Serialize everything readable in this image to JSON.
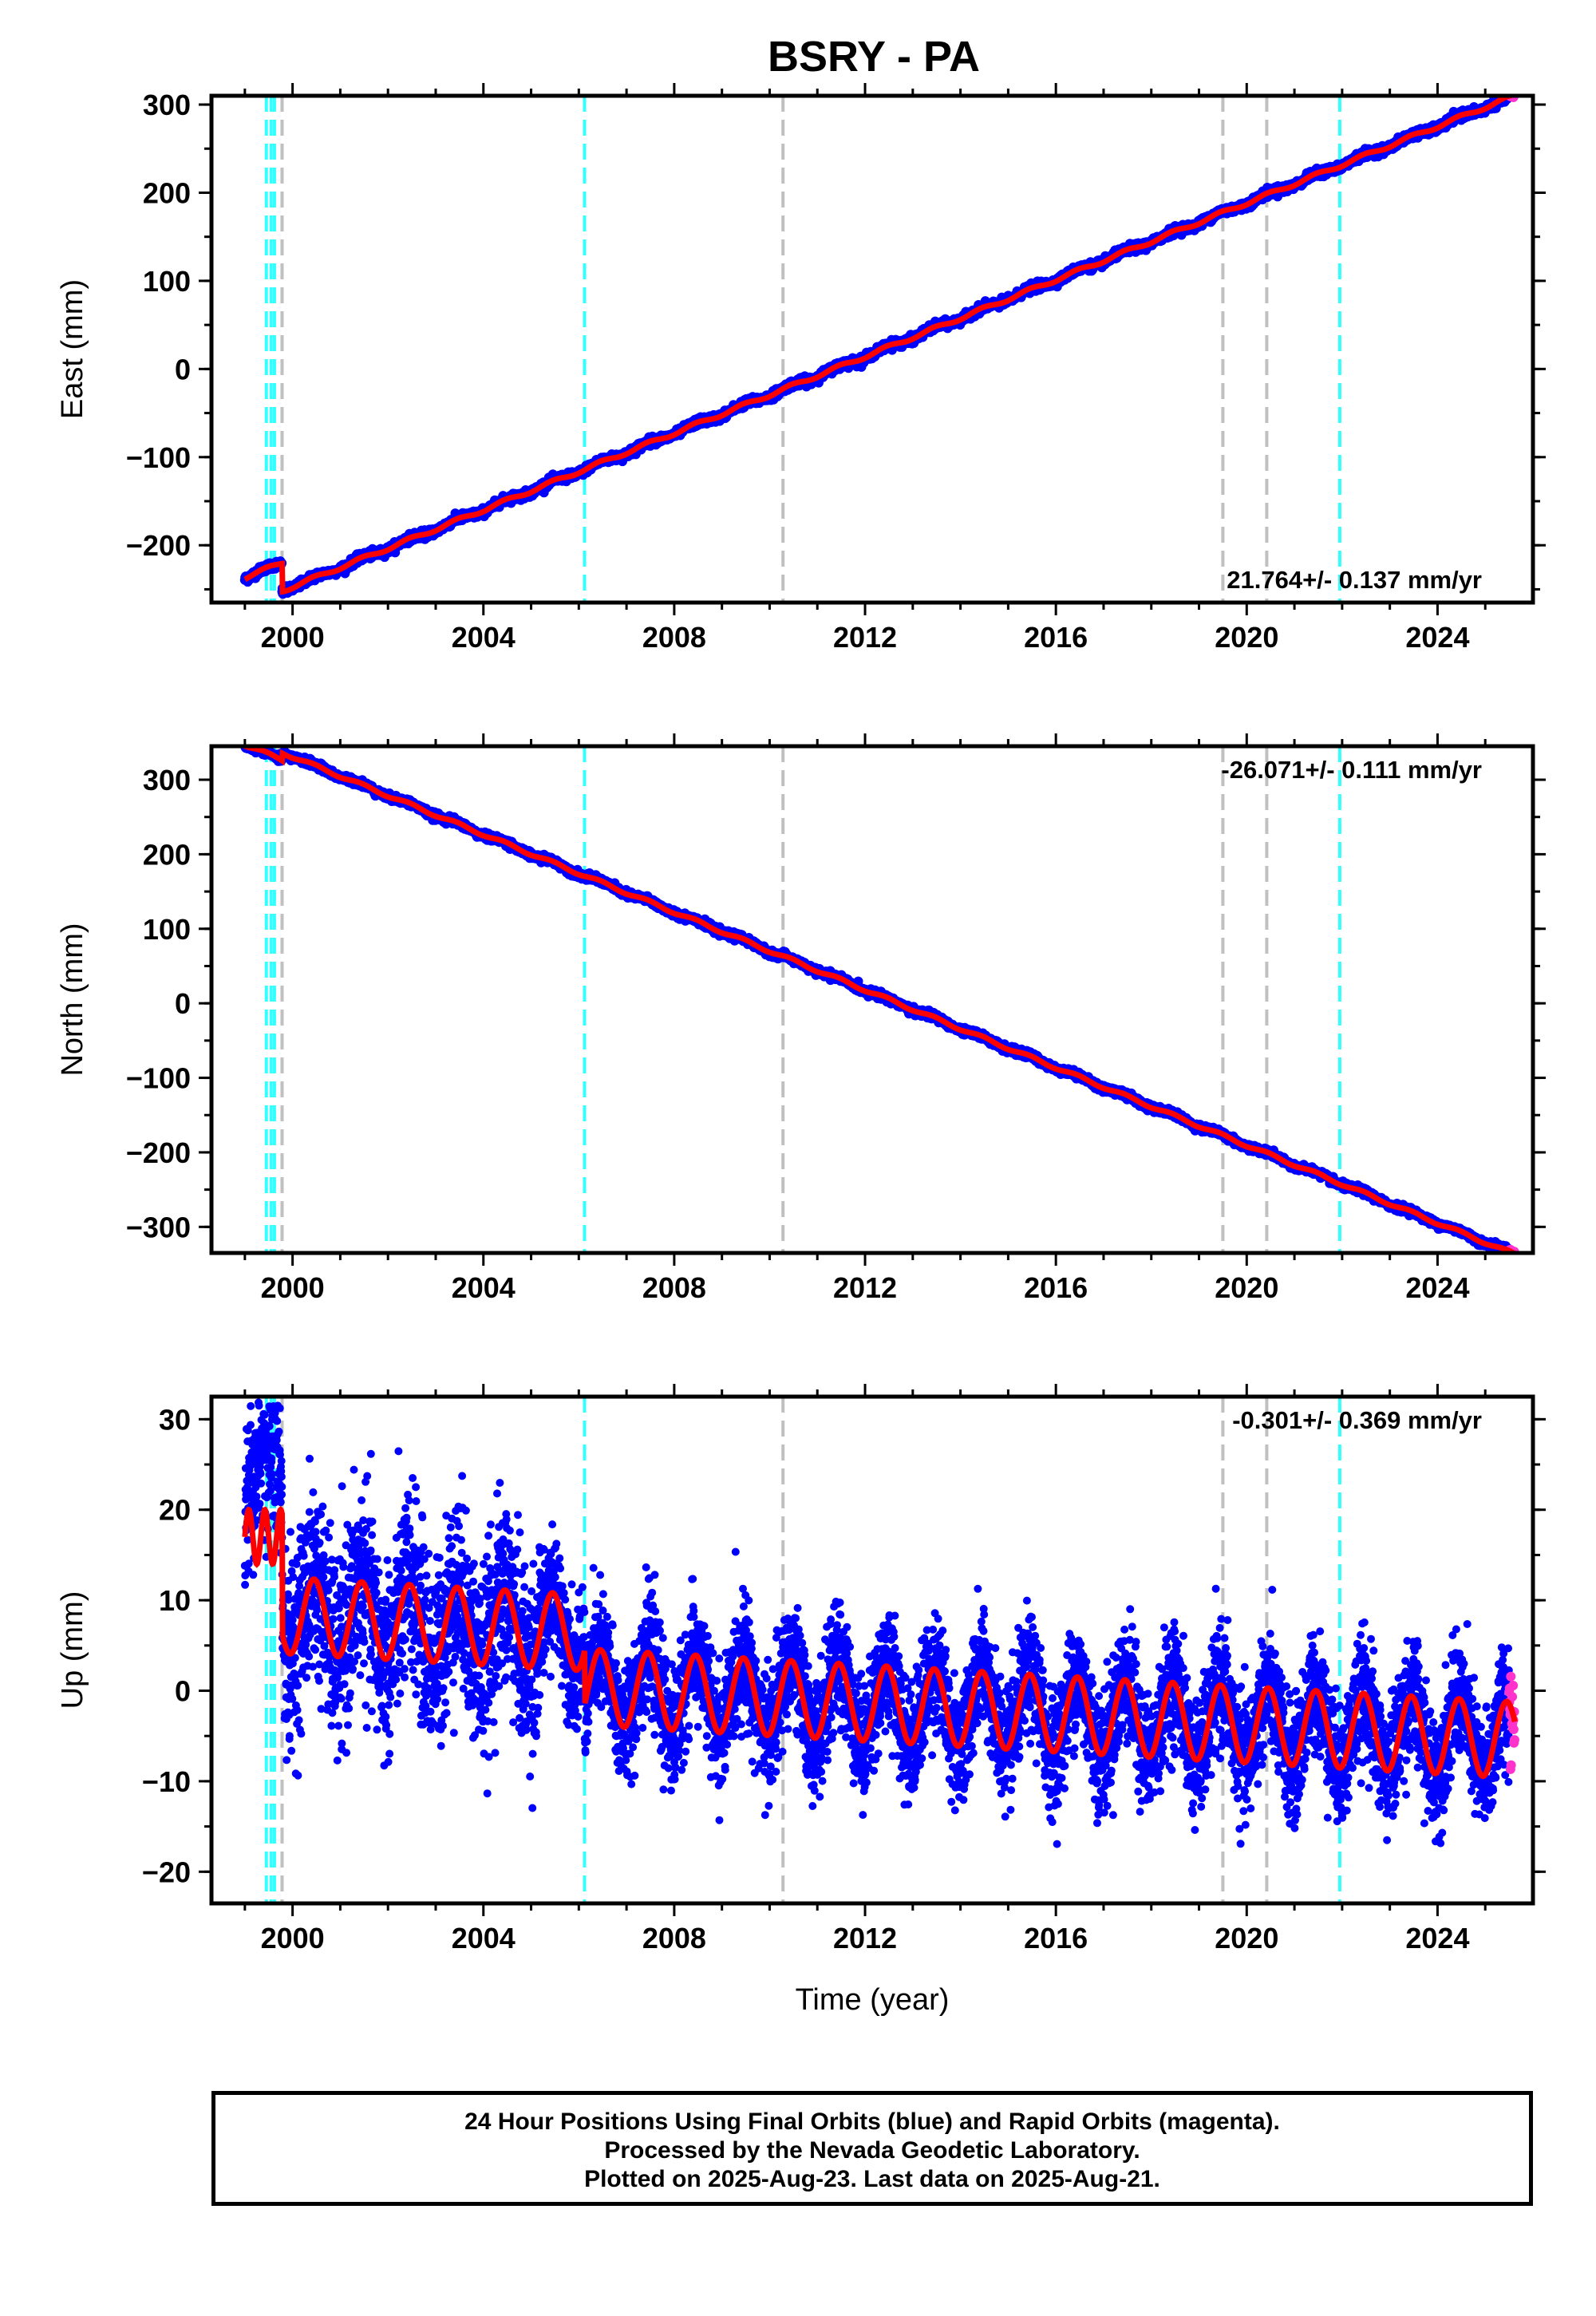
{
  "title": "BSRY - PA",
  "footer": {
    "line1": "24 Hour Positions Using Final Orbits (blue) and Rapid Orbits (magenta).",
    "line2": "Processed by the Nevada Geodetic Laboratory.",
    "line3": "Plotted on 2025-Aug-23. Last data on 2025-Aug-21."
  },
  "colors": {
    "final_orbits": "#0000ff",
    "rapid_orbits": "#ff33cc",
    "model_fit": "#ff0000",
    "equipment_change": "#33ffff",
    "other_event": "#c0c0c0"
  },
  "chart_data": [
    {
      "type": "scatter",
      "name": "east",
      "ylabel": "East (mm)",
      "xlabel": "",
      "xlim": [
        1998.3,
        2026.0
      ],
      "ylim": [
        -265,
        310
      ],
      "xticks": [
        2000,
        2004,
        2008,
        2012,
        2016,
        2020,
        2024
      ],
      "yticks": [
        -200,
        -100,
        0,
        100,
        200,
        300
      ],
      "rate_text": "21.764+/- 0.137 mm/yr",
      "rate_position": "bottom-right",
      "grid": false,
      "events_cyan": [
        1999.45,
        1999.55,
        1999.62,
        2006.12,
        2021.95
      ],
      "events_gray": [
        1999.78,
        2010.28,
        2019.5,
        2020.42
      ],
      "model": {
        "t0": 2012.5,
        "y0": 25,
        "rate": 21.764,
        "amplitude": 2.0,
        "offsets": [
          {
            "t": 1999.78,
            "dy": -32
          }
        ]
      },
      "start": [
        1999.0,
        -228
      ],
      "end": [
        2025.62,
        298
      ]
    },
    {
      "type": "scatter",
      "name": "north",
      "ylabel": "North (mm)",
      "xlabel": "",
      "xlim": [
        1998.3,
        2026.0
      ],
      "ylim": [
        -335,
        345
      ],
      "xticks": [
        2000,
        2004,
        2008,
        2012,
        2016,
        2020,
        2024
      ],
      "yticks": [
        -300,
        -200,
        -100,
        0,
        100,
        200,
        300
      ],
      "rate_text": "-26.071+/- 0.111 mm/yr",
      "rate_position": "top-right",
      "grid": false,
      "events_cyan": [
        1999.45,
        1999.55,
        1999.62,
        2006.12,
        2021.95
      ],
      "events_gray": [
        1999.78,
        2010.28,
        2019.5,
        2020.42
      ],
      "model": {
        "t0": 2012.5,
        "y0": 5,
        "rate": -26.071,
        "amplitude": 2.0,
        "offsets": [
          {
            "t": 1999.78,
            "dy": 10
          }
        ]
      },
      "start": [
        1999.0,
        333
      ],
      "end": [
        2025.62,
        -317
      ]
    },
    {
      "type": "scatter",
      "name": "up",
      "ylabel": "Up (mm)",
      "xlabel": "Time (year)",
      "xlim": [
        1998.3,
        2026.0
      ],
      "ylim": [
        -23.5,
        32.5
      ],
      "xticks": [
        2000,
        2004,
        2008,
        2012,
        2016,
        2020,
        2024
      ],
      "yticks": [
        -20,
        -10,
        0,
        10,
        20,
        30
      ],
      "rate_text": "-0.301+/- 0.369 mm/yr",
      "rate_position": "top-right",
      "grid": false,
      "events_cyan": [
        1999.45,
        1999.55,
        1999.62,
        2006.12,
        2021.95
      ],
      "events_gray": [
        1999.78,
        2010.28,
        2019.5,
        2020.42
      ],
      "model": {
        "t0": 2012.5,
        "y0": -1.5,
        "rate": -0.301,
        "amplitude": 4.2,
        "offsets": [
          {
            "t": 1999.78,
            "dy": -12
          },
          {
            "t": 2006.12,
            "dy": -6
          }
        ]
      },
      "start": [
        1999.0,
        18
      ],
      "end": [
        2025.62,
        -1
      ]
    }
  ]
}
